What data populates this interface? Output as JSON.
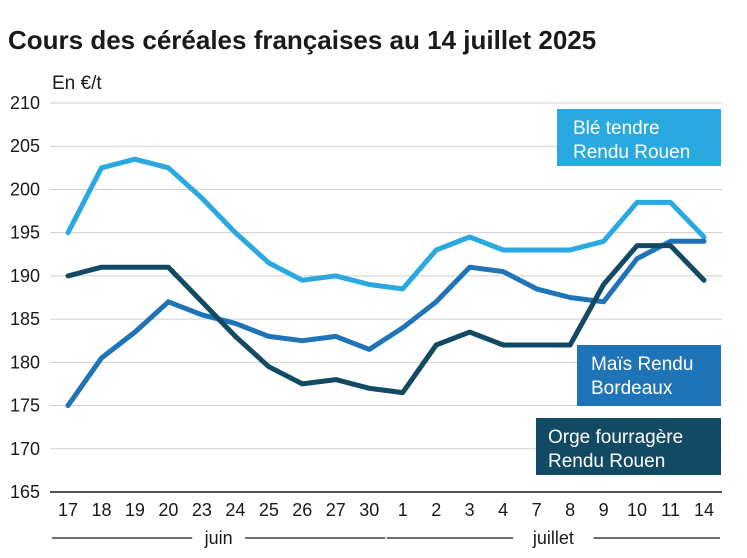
{
  "chart_data": {
    "type": "line",
    "title": "Cours des céréales françaises au 14 juillet 2025",
    "ylabel": "En €/t",
    "xlabel": "",
    "ylim": [
      165,
      210
    ],
    "yticks": [
      165,
      170,
      175,
      180,
      185,
      190,
      195,
      200,
      205,
      210
    ],
    "categories": [
      "17",
      "18",
      "19",
      "20",
      "23",
      "24",
      "25",
      "26",
      "27",
      "30",
      "1",
      "2",
      "3",
      "4",
      "7",
      "8",
      "9",
      "10",
      "11",
      "14"
    ],
    "months": [
      {
        "label": "juin",
        "start": 0,
        "end": 9
      },
      {
        "label": "juillet",
        "start": 10,
        "end": 19
      }
    ],
    "grid": true,
    "series": [
      {
        "name": "Blé tendre Rendu Rouen",
        "legend_lines": [
          "Blé tendre",
          "Rendu Rouen"
        ],
        "color": "#29a9e0",
        "label_text_color": "#ffffff",
        "values": [
          195,
          202.5,
          203.5,
          202.5,
          199,
          195,
          191.5,
          189.5,
          190,
          189,
          188.5,
          193,
          194.5,
          193,
          193,
          193,
          194,
          198.5,
          198.5,
          194.5
        ]
      },
      {
        "name": "Maïs Rendu Bordeaux",
        "legend_lines": [
          "Maïs Rendu",
          "Bordeaux"
        ],
        "color": "#1f73b7",
        "label_text_color": "#ffffff",
        "values": [
          175,
          180.5,
          183.5,
          187,
          185.5,
          184.5,
          183,
          182.5,
          183,
          181.5,
          184,
          187,
          191,
          190.5,
          188.5,
          187.5,
          187,
          192,
          194,
          194
        ]
      },
      {
        "name": "Orge fourragère Rendu Rouen",
        "legend_lines": [
          "Orge fourragère",
          "Rendu Rouen"
        ],
        "color": "#124a63",
        "label_text_color": "#ffffff",
        "values": [
          190,
          191,
          191,
          191,
          187,
          183,
          179.5,
          177.5,
          178,
          177,
          176.5,
          182,
          183.5,
          182,
          182,
          182,
          189,
          193.5,
          193.5,
          189.5
        ]
      }
    ]
  }
}
